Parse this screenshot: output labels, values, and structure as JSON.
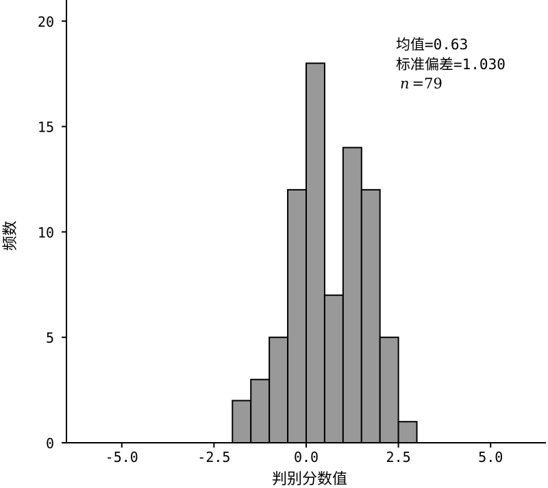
{
  "chart_data": {
    "type": "bar",
    "xlabel": "判别分数值",
    "ylabel": "频数",
    "xlim": [
      -6.5,
      6.5
    ],
    "ylim": [
      0,
      21
    ],
    "x_ticks": [
      -5.0,
      -2.5,
      0.0,
      2.5,
      5.0
    ],
    "x_tick_labels": [
      "-5.0",
      "-2.5",
      "0.0",
      "2.5",
      "5.0"
    ],
    "y_ticks": [
      0,
      5,
      10,
      15,
      20
    ],
    "y_tick_labels": [
      "0",
      "5",
      "10",
      "15",
      "20"
    ],
    "bin_width": 0.5,
    "bins": [
      {
        "left": -2.0,
        "count": 2
      },
      {
        "left": -1.5,
        "count": 3
      },
      {
        "left": -1.0,
        "count": 5
      },
      {
        "left": -0.5,
        "count": 12
      },
      {
        "left": 0.0,
        "count": 18
      },
      {
        "left": 0.5,
        "count": 7
      },
      {
        "left": 1.0,
        "count": 14
      },
      {
        "left": 1.5,
        "count": 12
      },
      {
        "left": 2.0,
        "count": 5
      },
      {
        "left": 2.5,
        "count": 1
      }
    ],
    "bar_color": "#999999",
    "grid": false,
    "stats": {
      "mean_text": "均值=0.63",
      "sd_text": "标准偏差=1.030",
      "n_symbol": "n",
      "n_text": "=79"
    }
  }
}
